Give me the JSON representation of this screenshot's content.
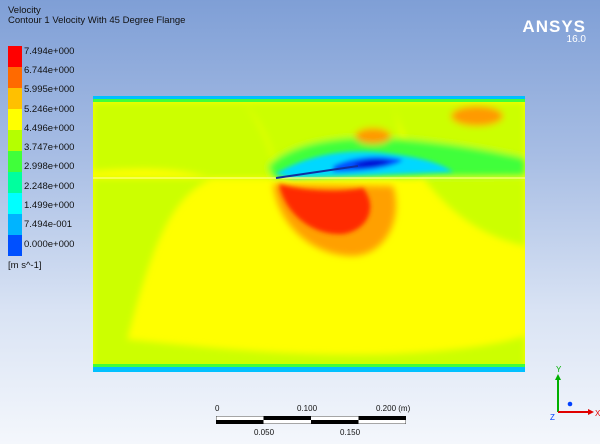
{
  "header": {
    "variable": "Velocity",
    "contour_title": "Contour 1 Velocity With 45 Degree Flange"
  },
  "legend": {
    "labels": [
      "7.494e+000",
      "6.744e+000",
      "5.995e+000",
      "5.246e+000",
      "4.496e+000",
      "3.747e+000",
      "2.998e+000",
      "2.248e+000",
      "1.499e+000",
      "7.494e-001",
      "0.000e+000"
    ],
    "unit": "[m s^-1]",
    "colors": [
      "#ff0000",
      "#ff6a00",
      "#ffc000",
      "#ffff00",
      "#b5ff00",
      "#40ff3a",
      "#00ff9e",
      "#00ffff",
      "#00b4ff",
      "#0050ff",
      "#0000d0"
    ]
  },
  "brand": {
    "name": "ANSYS",
    "version": "16.0"
  },
  "scale_bar": {
    "top_labels": [
      "0",
      "0.100",
      "0.200 (m)"
    ],
    "bottom_labels": [
      "0.050",
      "0.150"
    ]
  },
  "axes": {
    "x_label": "X",
    "y_label": "Y",
    "z_label": "Z",
    "colors": {
      "x": "#e00000",
      "y": "#00b000",
      "z": "#0040ff"
    }
  }
}
